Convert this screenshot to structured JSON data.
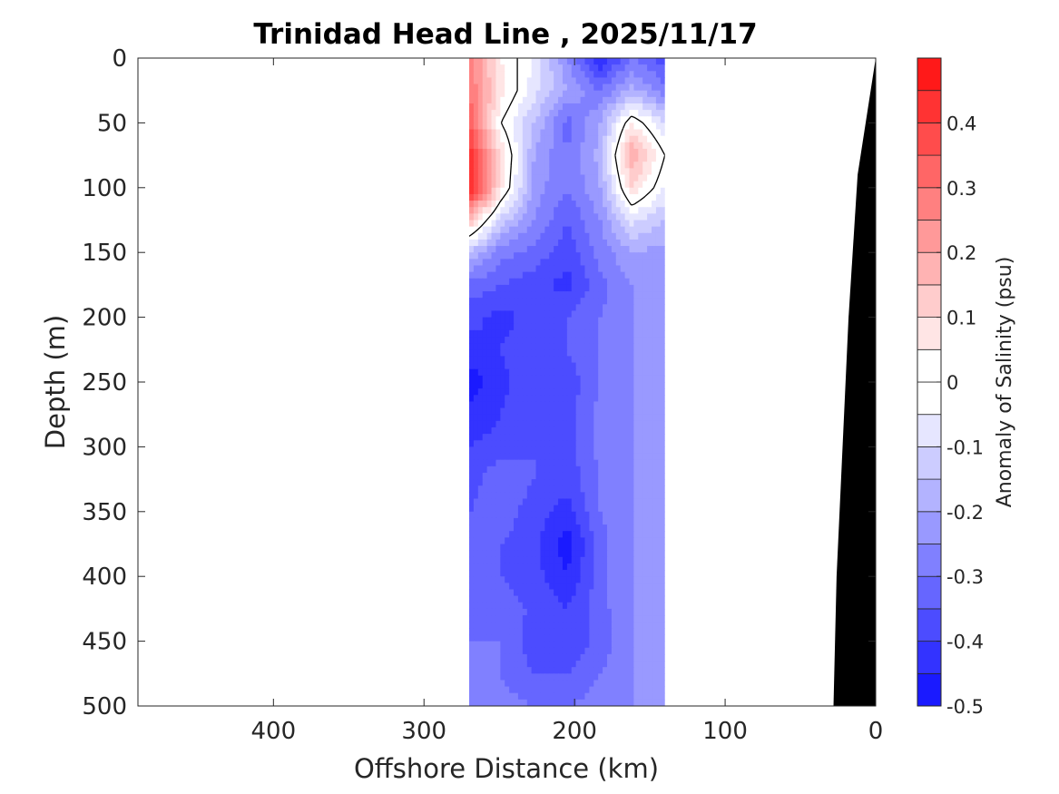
{
  "chart_data": {
    "type": "heatmap",
    "title": "Trinidad Head Line , 2025/11/17",
    "xlabel": "Offshore Distance (km)",
    "ylabel": "Depth (m)",
    "colorbar_label": "Anomaly of Salinity (psu)",
    "xlim": [
      490,
      0
    ],
    "x_reversed": true,
    "ylim": [
      500,
      0
    ],
    "y_reversed": true,
    "x_ticks": [
      400,
      300,
      200,
      100,
      0
    ],
    "x_tick_labels": [
      "400",
      "300",
      "200",
      "100",
      "0"
    ],
    "y_ticks": [
      0,
      50,
      100,
      150,
      200,
      250,
      300,
      350,
      400,
      450,
      500
    ],
    "y_tick_labels": [
      "0",
      "50",
      "100",
      "150",
      "200",
      "250",
      "300",
      "350",
      "400",
      "450",
      "500"
    ],
    "colorbar": {
      "min": -0.5,
      "max": 0.5,
      "step": 0.05,
      "tick_values": [
        0.4,
        0.3,
        0.2,
        0.1,
        0,
        -0.1,
        -0.2,
        -0.3,
        -0.4,
        -0.5
      ],
      "tick_labels": [
        "0.4",
        "0.3",
        "0.2",
        "0.1",
        "0",
        "-0.1",
        "-0.2",
        "-0.3",
        "-0.4",
        "-0.5"
      ],
      "colormap": "blue-white-red",
      "low_color": "#0000ff",
      "mid_color": "#ffffff",
      "high_color": "#ff0000"
    },
    "data_extent_km": [
      270,
      140
    ],
    "grid_x_km": [
      270,
      249,
      227,
      205,
      183,
      162,
      140
    ],
    "grid_depth_m": [
      0,
      25,
      50,
      75,
      100,
      125,
      150,
      175,
      200,
      225,
      250,
      275,
      300,
      325,
      350,
      375,
      400,
      425,
      450,
      475,
      500
    ],
    "values": [
      [
        0.28,
        0.05,
        -0.05,
        -0.25,
        -0.45,
        -0.3,
        -0.38
      ],
      [
        0.3,
        0.08,
        -0.08,
        -0.2,
        -0.3,
        -0.18,
        -0.28
      ],
      [
        0.35,
        0.0,
        -0.15,
        -0.32,
        -0.2,
        0.05,
        -0.1
      ],
      [
        0.45,
        0.1,
        -0.2,
        -0.3,
        -0.18,
        0.2,
        0.0
      ],
      [
        0.48,
        0.08,
        -0.22,
        -0.3,
        -0.2,
        0.1,
        -0.05
      ],
      [
        0.15,
        -0.12,
        -0.25,
        -0.35,
        -0.25,
        -0.08,
        -0.15
      ],
      [
        -0.15,
        -0.28,
        -0.32,
        -0.38,
        -0.28,
        -0.2,
        -0.22
      ],
      [
        -0.32,
        -0.35,
        -0.38,
        -0.42,
        -0.32,
        -0.25,
        -0.25
      ],
      [
        -0.38,
        -0.42,
        -0.38,
        -0.35,
        -0.3,
        -0.25,
        -0.25
      ],
      [
        -0.42,
        -0.4,
        -0.35,
        -0.35,
        -0.3,
        -0.25,
        -0.25
      ],
      [
        -0.48,
        -0.42,
        -0.35,
        -0.38,
        -0.3,
        -0.25,
        -0.25
      ],
      [
        -0.44,
        -0.4,
        -0.35,
        -0.38,
        -0.28,
        -0.25,
        -0.25
      ],
      [
        -0.4,
        -0.38,
        -0.35,
        -0.38,
        -0.28,
        -0.25,
        -0.25
      ],
      [
        -0.38,
        -0.3,
        -0.35,
        -0.38,
        -0.3,
        -0.25,
        -0.25
      ],
      [
        -0.35,
        -0.32,
        -0.38,
        -0.42,
        -0.3,
        -0.25,
        -0.25
      ],
      [
        -0.35,
        -0.35,
        -0.38,
        -0.48,
        -0.32,
        -0.25,
        -0.25
      ],
      [
        -0.32,
        -0.35,
        -0.38,
        -0.45,
        -0.32,
        -0.25,
        -0.22
      ],
      [
        -0.3,
        -0.32,
        -0.36,
        -0.4,
        -0.32,
        -0.25,
        -0.22
      ],
      [
        -0.3,
        -0.3,
        -0.38,
        -0.4,
        -0.33,
        -0.25,
        -0.22
      ],
      [
        -0.28,
        -0.3,
        -0.35,
        -0.35,
        -0.3,
        -0.25,
        -0.25
      ],
      [
        -0.28,
        -0.28,
        -0.3,
        -0.3,
        -0.28,
        -0.25,
        -0.25
      ]
    ],
    "zero_contour": "black line",
    "bathymetry": {
      "color": "#000000",
      "points_km_m": [
        [
          0,
          0
        ],
        [
          12,
          90
        ],
        [
          18,
          200
        ],
        [
          22,
          300
        ],
        [
          26,
          400
        ],
        [
          28,
          500
        ]
      ]
    },
    "grid": false
  }
}
